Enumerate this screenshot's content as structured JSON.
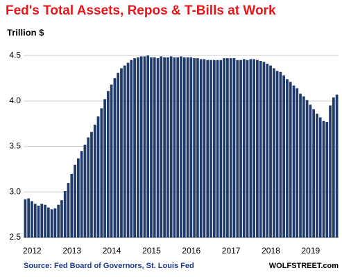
{
  "chart_data": {
    "type": "bar",
    "title": "Fed's Total Assets, Repos & T-Bills at Work",
    "subtitle": "Trillion $",
    "source": "Source: Fed Board of Governors, St. Louis Fed",
    "credit": "WOLFSTREET.com",
    "color": "#1f3a6b",
    "grid": true,
    "ylim": [
      2.5,
      4.6
    ],
    "yticks": [
      2.5,
      {
        "value": 3,
        "label": "3.0"
      },
      3.5,
      {
        "value": 4,
        "label": "4.0"
      },
      4.5
    ],
    "categories": [
      "2012",
      null,
      null,
      null,
      null,
      null,
      null,
      null,
      null,
      null,
      null,
      null,
      "2013",
      null,
      null,
      null,
      null,
      null,
      null,
      null,
      null,
      null,
      null,
      null,
      "2014",
      null,
      null,
      null,
      null,
      null,
      null,
      null,
      null,
      null,
      null,
      null,
      "2015",
      null,
      null,
      null,
      null,
      null,
      null,
      null,
      null,
      null,
      null,
      null,
      "2016",
      null,
      null,
      null,
      null,
      null,
      null,
      null,
      null,
      null,
      null,
      null,
      "2017",
      null,
      null,
      null,
      null,
      null,
      null,
      null,
      null,
      null,
      null,
      null,
      "2018",
      null,
      null,
      null,
      null,
      null,
      null,
      null,
      null,
      null,
      null,
      null,
      "2019",
      null,
      null,
      null,
      null,
      null,
      null,
      null,
      null,
      null,
      null
    ],
    "values": [
      2.92,
      2.93,
      2.9,
      2.87,
      2.85,
      2.87,
      2.86,
      2.83,
      2.81,
      2.82,
      2.86,
      2.91,
      3.01,
      3.1,
      3.2,
      3.3,
      3.37,
      3.45,
      3.52,
      3.6,
      3.66,
      3.74,
      3.83,
      3.92,
      4.02,
      4.11,
      4.18,
      4.25,
      4.31,
      4.36,
      4.39,
      4.42,
      4.45,
      4.47,
      4.48,
      4.49,
      4.49,
      4.5,
      4.48,
      4.48,
      4.47,
      4.49,
      4.48,
      4.48,
      4.49,
      4.48,
      4.48,
      4.49,
      4.48,
      4.48,
      4.48,
      4.47,
      4.47,
      4.46,
      4.46,
      4.45,
      4.45,
      4.45,
      4.45,
      4.45,
      4.47,
      4.47,
      4.47,
      4.47,
      4.45,
      4.45,
      4.46,
      4.45,
      4.46,
      4.46,
      4.45,
      4.44,
      4.43,
      4.41,
      4.39,
      4.36,
      4.33,
      4.32,
      4.28,
      4.24,
      4.21,
      4.17,
      4.14,
      4.08,
      4.05,
      4.01,
      3.96,
      3.91,
      3.86,
      3.82,
      3.78,
      3.77,
      3.95,
      4.04,
      4.07
    ]
  }
}
